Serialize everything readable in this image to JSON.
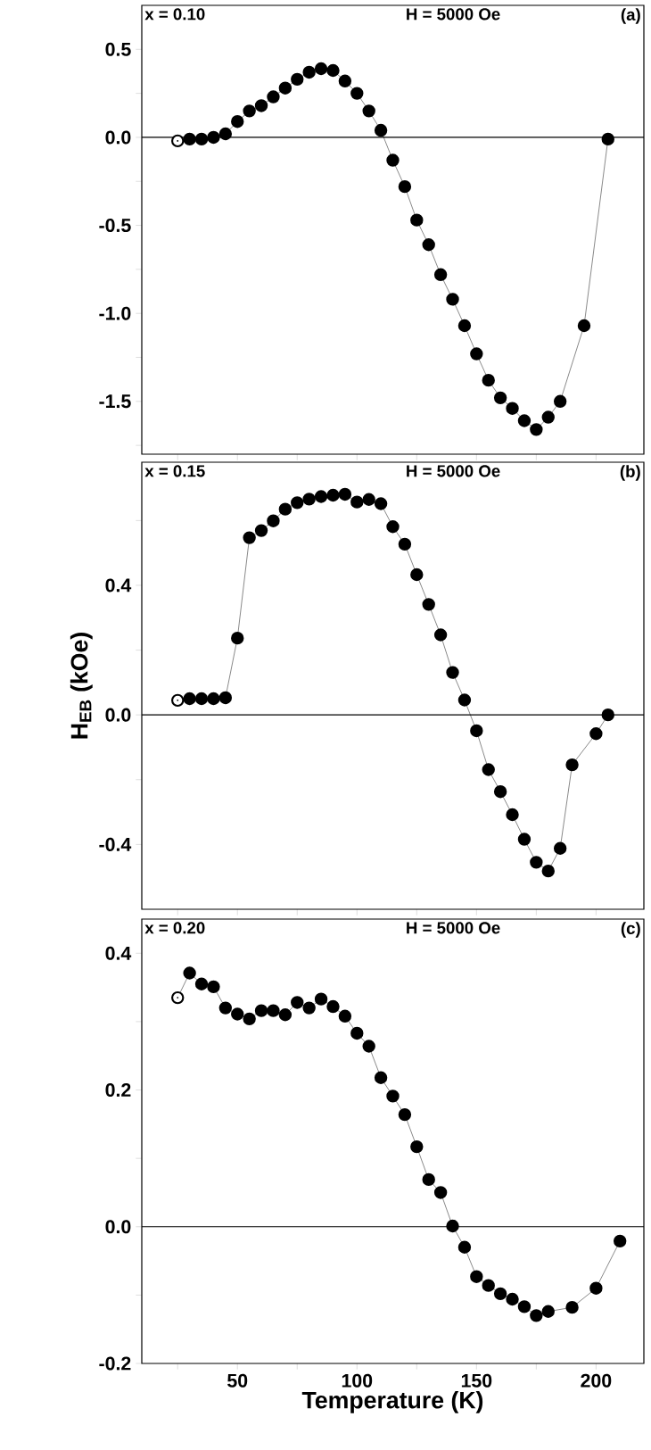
{
  "chart_data": [
    {
      "type": "line",
      "marker": "circle",
      "line_style": "solid",
      "tick_labels": "y",
      "xlim": [
        10,
        220
      ],
      "ylim": [
        -1.8,
        0.75
      ],
      "xticks": [
        {
          "value": 25,
          "label": null
        },
        50,
        {
          "value": 75,
          "label": null
        },
        100,
        {
          "value": 125,
          "label": null
        },
        150,
        {
          "value": 175,
          "label": null
        },
        200
      ],
      "yticks": [
        {
          "value": -1.75,
          "label": null
        },
        {
          "value": -1.5,
          "label": "-1.5"
        },
        {
          "value": -1.25,
          "label": null
        },
        {
          "value": -1.0,
          "label": "-1.0"
        },
        {
          "value": -0.75,
          "label": null
        },
        {
          "value": -0.5,
          "label": "-0.5"
        },
        {
          "value": -0.25,
          "label": null
        },
        {
          "value": 0,
          "label": "0.0"
        },
        {
          "value": 0.25,
          "label": null
        },
        {
          "value": 0.5,
          "label": "0.5"
        }
      ],
      "annotations": [
        "x = 0.10",
        "H = 5000 Oe",
        "(a)"
      ],
      "ref_lines": [
        {
          "axis": "y",
          "value": 0,
          "color": "#000000"
        }
      ],
      "series": [
        {
          "color": "#000000",
          "x": [
            25,
            30,
            35,
            40,
            45,
            50,
            55,
            60,
            65,
            70,
            75,
            80,
            85,
            90,
            95,
            100,
            105,
            110,
            115,
            120,
            125,
            130,
            135,
            140,
            145,
            150,
            155,
            160,
            165,
            170,
            175,
            180,
            185,
            195,
            205
          ],
          "values": [
            -0.02,
            -0.01,
            -0.01,
            0.0,
            0.02,
            0.09,
            0.15,
            0.18,
            0.23,
            0.28,
            0.33,
            0.37,
            0.39,
            0.38,
            0.32,
            0.25,
            0.15,
            0.04,
            -0.13,
            -0.28,
            -0.47,
            -0.61,
            -0.78,
            -0.92,
            -1.07,
            -1.23,
            -1.38,
            -1.48,
            -1.54,
            -1.61,
            -1.66,
            -1.59,
            -1.5,
            -1.07,
            -0.01
          ]
        }
      ]
    },
    {
      "type": "line",
      "marker": "circle",
      "line_style": "solid",
      "tick_labels": "y",
      "xlim": [
        10,
        220
      ],
      "ylim": [
        -0.6,
        0.78
      ],
      "ylabel": "H$_{EB}$ (kOe)",
      "xticks": [
        {
          "value": 25,
          "label": null
        },
        50,
        {
          "value": 75,
          "label": null
        },
        100,
        {
          "value": 125,
          "label": null
        },
        150,
        {
          "value": 175,
          "label": null
        },
        200
      ],
      "yticks": [
        {
          "value": -0.4,
          "label": "-0.4"
        },
        {
          "value": -0.2,
          "label": null
        },
        {
          "value": 0,
          "label": "0.0"
        },
        {
          "value": 0.2,
          "label": null
        },
        {
          "value": 0.4,
          "label": "0.4"
        },
        {
          "value": 0.6,
          "label": null
        }
      ],
      "annotations": [
        "x = 0.15",
        "H = 5000 Oe",
        "(b)"
      ],
      "ref_lines": [
        {
          "axis": "y",
          "value": 0,
          "color": "#000000"
        }
      ],
      "series": [
        {
          "color": "#000000",
          "x": [
            25,
            30,
            35,
            40,
            45,
            50,
            55,
            60,
            65,
            70,
            75,
            80,
            85,
            90,
            95,
            100,
            105,
            110,
            115,
            120,
            125,
            130,
            135,
            140,
            145,
            150,
            155,
            160,
            165,
            170,
            175,
            180,
            185,
            190,
            200,
            205
          ],
          "values": [
            0.045,
            0.05,
            0.05,
            0.05,
            0.053,
            0.237,
            0.547,
            0.569,
            0.599,
            0.635,
            0.655,
            0.666,
            0.674,
            0.678,
            0.681,
            0.657,
            0.665,
            0.652,
            0.581,
            0.527,
            0.433,
            0.341,
            0.247,
            0.131,
            0.046,
            -0.049,
            -0.169,
            -0.237,
            -0.308,
            -0.384,
            -0.455,
            -0.482,
            -0.412,
            -0.154,
            -0.058,
            0.0
          ]
        }
      ]
    },
    {
      "type": "line",
      "marker": "circle",
      "line_style": "solid",
      "xlim": [
        10,
        220
      ],
      "ylim": [
        -0.2,
        0.45
      ],
      "xlabel": "Temperature (K)",
      "xticks": [
        {
          "value": 25,
          "label": null
        },
        50,
        {
          "value": 75,
          "label": null
        },
        100,
        {
          "value": 125,
          "label": null
        },
        150,
        {
          "value": 175,
          "label": null
        },
        200
      ],
      "yticks": [
        {
          "value": -0.2,
          "label": "-0.2"
        },
        {
          "value": -0.1,
          "label": null
        },
        {
          "value": 0,
          "label": "0.0"
        },
        {
          "value": 0.1,
          "label": null
        },
        {
          "value": 0.2,
          "label": "0.2"
        },
        {
          "value": 0.3,
          "label": null
        },
        {
          "value": 0.4,
          "label": "0.4"
        }
      ],
      "annotations": [
        "x = 0.20",
        "H = 5000 Oe",
        "(c)"
      ],
      "ref_lines": [
        {
          "axis": "y",
          "value": 0,
          "color": "#000000"
        }
      ],
      "series": [
        {
          "color": "#000000",
          "x": [
            25,
            30,
            35,
            40,
            45,
            50,
            55,
            60,
            65,
            70,
            75,
            80,
            85,
            90,
            95,
            100,
            105,
            110,
            115,
            120,
            125,
            130,
            135,
            140,
            145,
            150,
            155,
            160,
            165,
            170,
            175,
            180,
            190,
            200,
            210
          ],
          "values": [
            0.335,
            0.371,
            0.355,
            0.351,
            0.32,
            0.311,
            0.304,
            0.316,
            0.316,
            0.31,
            0.328,
            0.32,
            0.333,
            0.322,
            0.308,
            0.283,
            0.264,
            0.218,
            0.191,
            0.164,
            0.117,
            0.069,
            0.05,
            0.001,
            -0.03,
            -0.073,
            -0.086,
            -0.098,
            -0.106,
            -0.117,
            -0.13,
            -0.124,
            -0.118,
            -0.09,
            -0.021
          ]
        }
      ]
    }
  ]
}
